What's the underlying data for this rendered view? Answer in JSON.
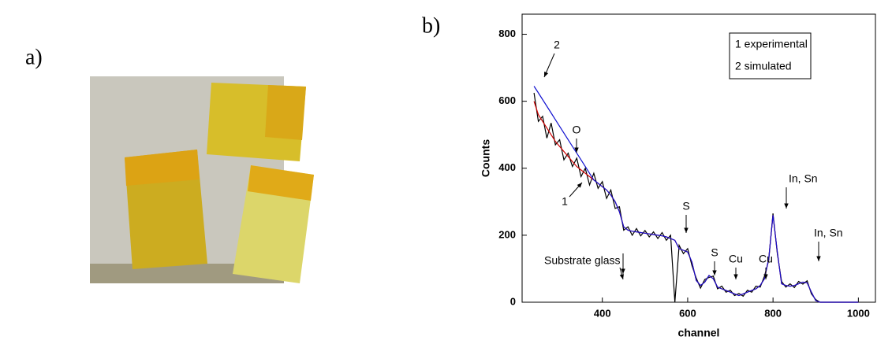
{
  "chart_data": {
    "type": "line",
    "xlabel": "channel",
    "ylabel": "Counts",
    "annotations": [
      "a)",
      "b)",
      "1 experimental",
      "2 simulated",
      "2",
      "O",
      "1",
      "S",
      "S",
      "Cu",
      "Cu",
      "In, Sn",
      "In, Sn",
      "Substrate glass"
    ],
    "x": [
      240,
      250,
      260,
      270,
      280,
      290,
      300,
      310,
      320,
      330,
      340,
      350,
      360,
      370,
      380,
      390,
      400,
      410,
      420,
      430,
      440,
      450,
      460,
      470,
      480,
      490,
      500,
      510,
      520,
      530,
      540,
      550,
      560,
      570,
      580,
      590,
      600,
      610,
      620,
      630,
      640,
      650,
      660,
      670,
      680,
      690,
      700,
      710,
      720,
      730,
      740,
      750,
      760,
      770,
      780,
      790,
      800,
      810,
      820,
      830,
      840,
      850,
      860,
      870,
      880,
      890,
      900,
      910,
      920,
      930,
      940,
      950,
      960,
      970,
      980,
      990,
      1000
    ],
    "series": [
      {
        "color": "#000000",
        "values": [
          625,
          540,
          555,
          490,
          535,
          470,
          485,
          425,
          445,
          405,
          430,
          375,
          400,
          350,
          385,
          340,
          360,
          310,
          335,
          280,
          285,
          215,
          225,
          200,
          220,
          198,
          214,
          195,
          210,
          190,
          208,
          185,
          200,
          0,
          170,
          145,
          160,
          110,
          72,
          42,
          68,
          74,
          78,
          40,
          48,
          30,
          36,
          20,
          26,
          18,
          36,
          30,
          48,
          45,
          78,
          125,
          265,
          145,
          62,
          45,
          55,
          44,
          62,
          54,
          64,
          25,
          8,
          0,
          0,
          0,
          0,
          0,
          0,
          0,
          0,
          0,
          0
        ]
      },
      {
        "color": "#d00000",
        "values": [
          600,
          560,
          540,
          520,
          500,
          480,
          465,
          450,
          435,
          420,
          405,
          395,
          385,
          375,
          365,
          355,
          345,
          335,
          320,
          300,
          270,
          225,
          215,
          212,
          210,
          208,
          206,
          204,
          202,
          200,
          198,
          195,
          190,
          185,
          160,
          155,
          150,
          120,
          65,
          50,
          60,
          80,
          70,
          45,
          40,
          35,
          30,
          25,
          20,
          25,
          30,
          35,
          40,
          50,
          70,
          130,
          260,
          150,
          55,
          50,
          48,
          50,
          55,
          60,
          58,
          30,
          5,
          0,
          0,
          0,
          0,
          0,
          0,
          0,
          0,
          0,
          0
        ]
      },
      {
        "color": "#1010d0",
        "values": [
          645,
          625,
          605,
          585,
          565,
          545,
          525,
          505,
          485,
          465,
          445,
          425,
          405,
          385,
          365,
          355,
          345,
          335,
          320,
          300,
          270,
          225,
          215,
          212,
          210,
          208,
          206,
          204,
          202,
          200,
          198,
          195,
          190,
          185,
          160,
          155,
          150,
          120,
          65,
          50,
          60,
          80,
          70,
          45,
          40,
          35,
          30,
          25,
          20,
          25,
          30,
          35,
          40,
          50,
          70,
          130,
          260,
          150,
          55,
          50,
          48,
          50,
          55,
          60,
          58,
          30,
          5,
          0,
          0,
          0,
          0,
          0,
          0,
          0,
          0,
          0,
          0
        ]
      }
    ],
    "xlim": [
      212,
      1040
    ],
    "ylim": [
      0,
      860
    ],
    "xticks": [
      400,
      600,
      800,
      1000
    ],
    "yticks": [
      0,
      200,
      400,
      600,
      800
    ]
  }
}
